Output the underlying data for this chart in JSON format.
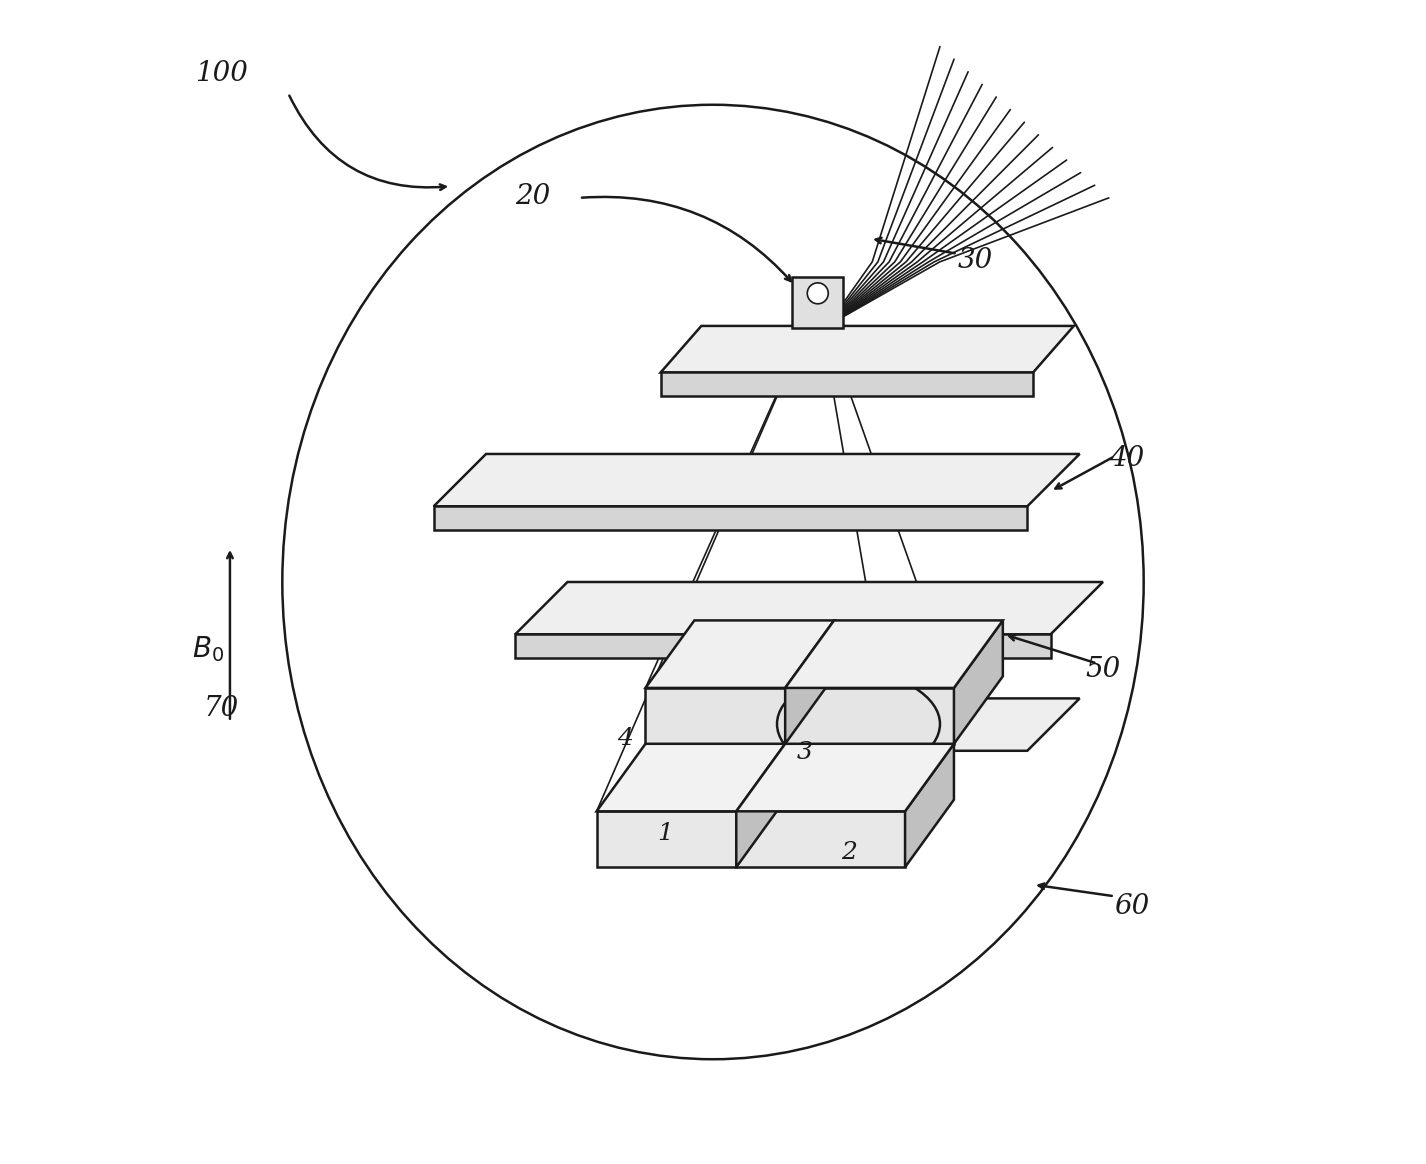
{
  "bg_color": "#ffffff",
  "line_color": "#1a1a1a",
  "fill_light": "#f5f5f5",
  "fill_mid": "#e8e8e8",
  "fill_dark": "#d0d0d0",
  "label_fontsize": 20,
  "cell_fontsize": 18,
  "lw_main": 1.8,
  "lw_thin": 1.2
}
